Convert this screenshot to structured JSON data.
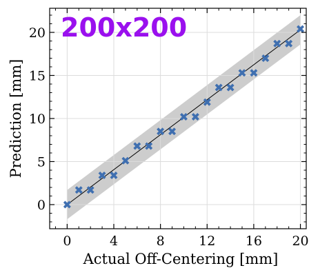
{
  "chart_data": {
    "type": "scatter",
    "xlabel": "Actual Off-Centering [mm]",
    "ylabel": "Prediction [mm]",
    "xlim": [
      -1.5,
      20.5
    ],
    "ylim": [
      -2.8,
      22.8
    ],
    "xticks": [
      0,
      4,
      8,
      12,
      16,
      20
    ],
    "yticks": [
      0,
      5,
      10,
      15,
      20
    ],
    "grid": true,
    "annotation": "200x200",
    "annotation_color": "#9a10ee",
    "marker": "x-filled",
    "marker_color": "#3f6fb0",
    "band_color": "#c8c8c8",
    "line_color": "#000000",
    "identity_line": {
      "x": [
        0,
        20
      ],
      "y": [
        0,
        20.3
      ]
    },
    "band": {
      "x": [
        0,
        20
      ],
      "lower": [
        -1.7,
        18.6
      ],
      "upper": [
        1.7,
        22.0
      ]
    },
    "points": {
      "x": [
        0,
        1,
        2,
        3,
        4,
        5,
        6,
        7,
        8,
        9,
        10,
        11,
        12,
        13,
        14,
        15,
        16,
        17,
        18,
        19,
        20
      ],
      "y": [
        0.0,
        1.7,
        1.7,
        3.4,
        3.4,
        5.1,
        6.8,
        6.8,
        8.5,
        8.5,
        10.2,
        10.2,
        11.9,
        13.6,
        13.6,
        15.3,
        15.3,
        17.0,
        18.7,
        18.7,
        20.4
      ]
    }
  }
}
